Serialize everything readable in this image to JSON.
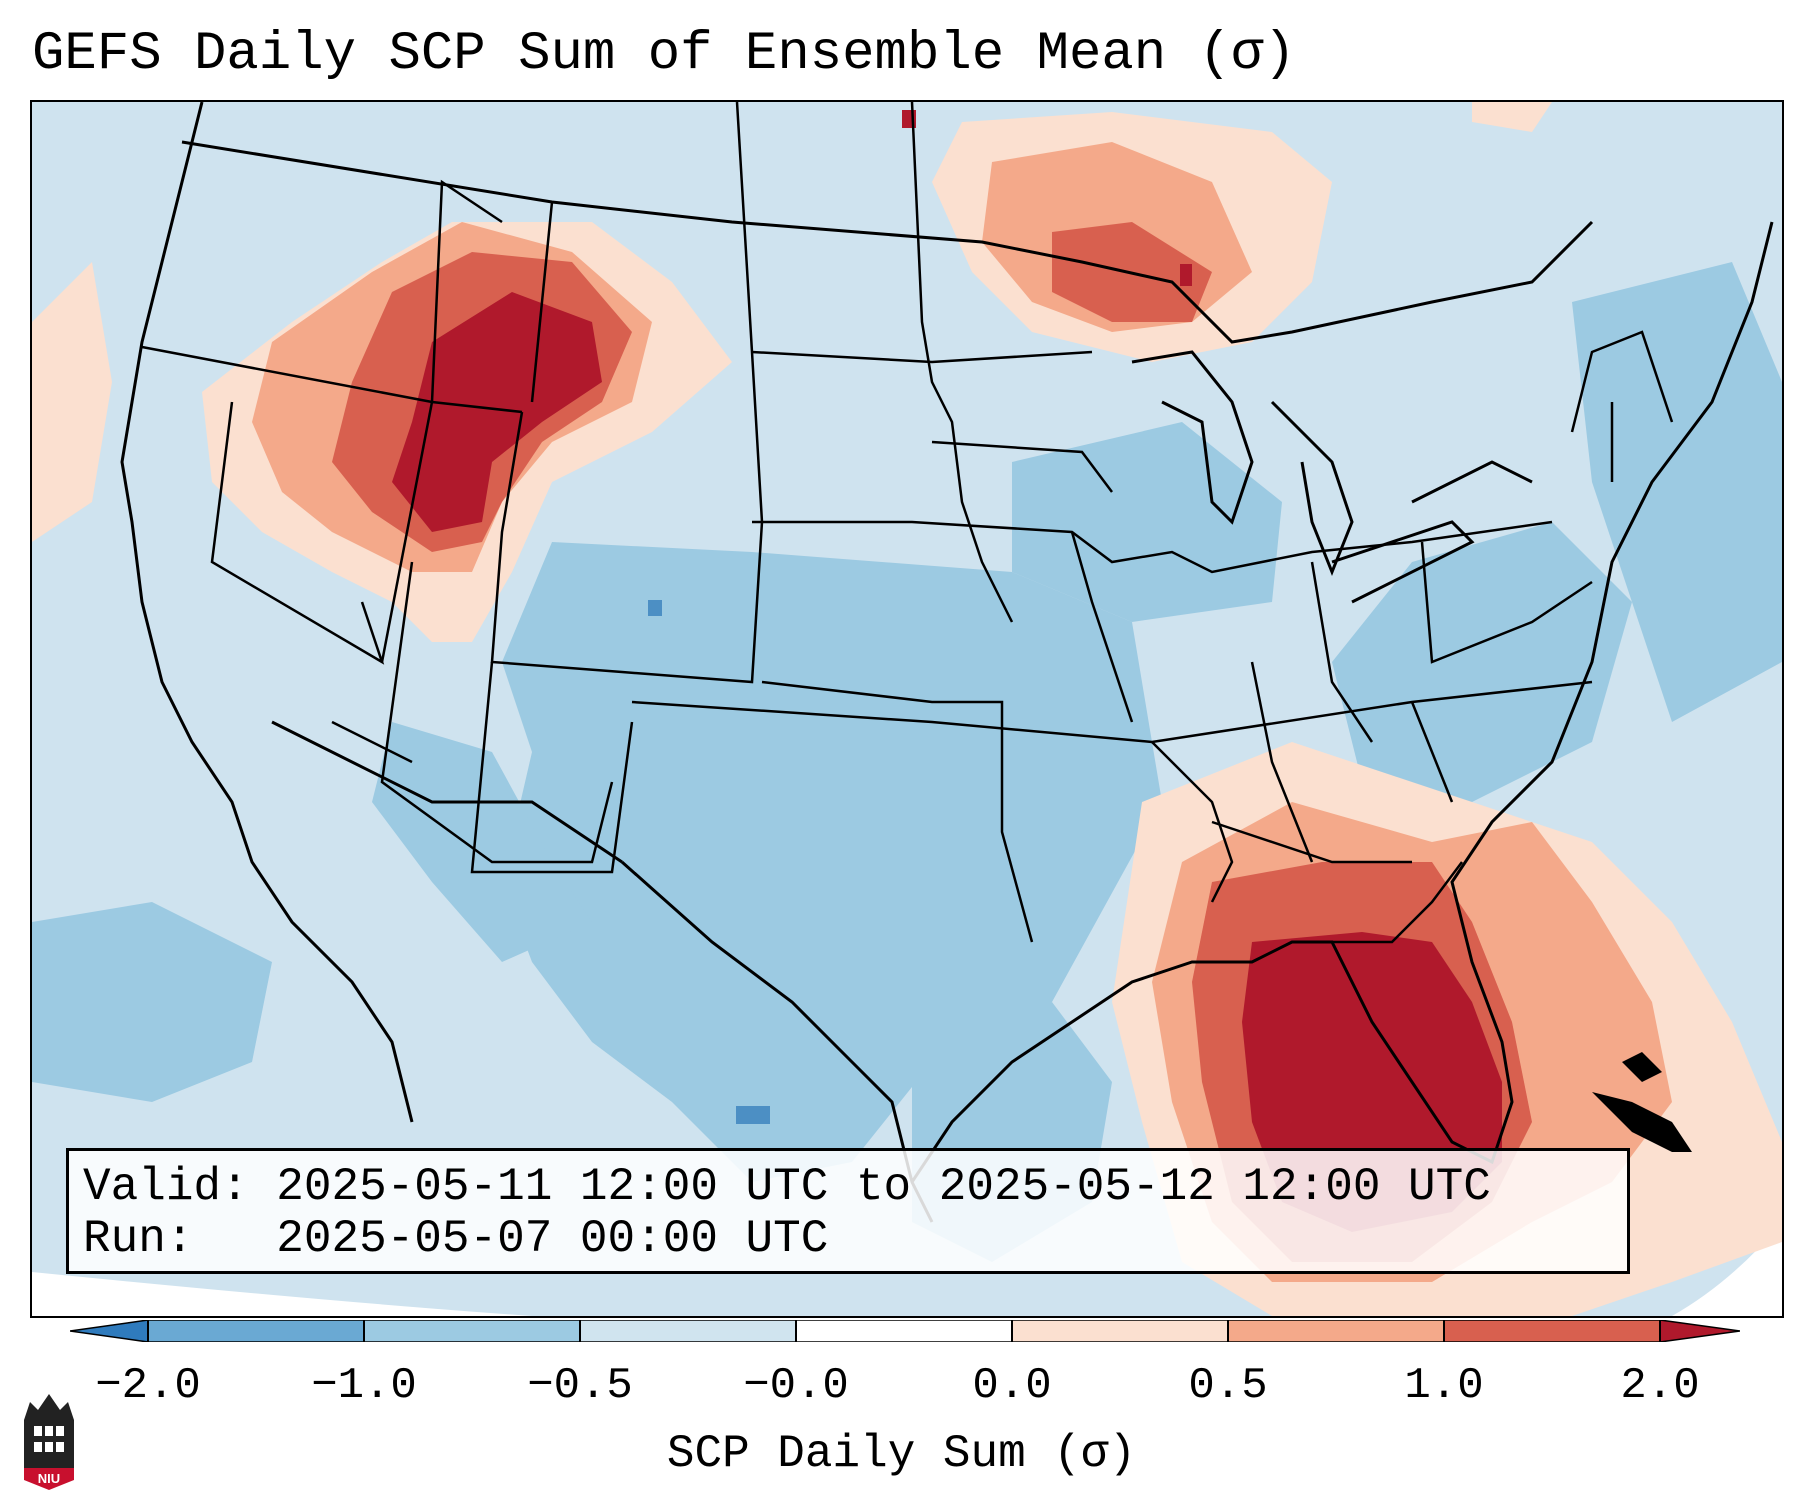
{
  "title": "GEFS Daily SCP Sum of Ensemble Mean (σ)",
  "info": {
    "valid_label": "Valid:",
    "valid_value": "2025-05-11 12:00 UTC to 2025-05-12 12:00 UTC",
    "run_label": "Run:",
    "run_value": "2025-05-07 00:00 UTC"
  },
  "colorbar": {
    "label": "SCP Daily Sum (σ)",
    "ticks": [
      "−2.0",
      "−1.0",
      "−0.5",
      "−0.0",
      "0.0",
      "0.5",
      "1.0",
      "2.0"
    ],
    "colors": [
      "#2f7bbd",
      "#6aa9d3",
      "#9ccae2",
      "#d0e4ef",
      "#fbe0d0",
      "#f4a98a",
      "#d8604f",
      "#b0192c"
    ],
    "extend": "both"
  },
  "map": {
    "region": "Contiguous United States",
    "features": [
      "state-borders",
      "coastlines",
      "great-lakes"
    ],
    "highlights": [
      {
        "area": "Idaho / Montana / Wyoming",
        "level": "positive 1.0 to 2.0"
      },
      {
        "area": "Florida / Southeast",
        "level": "positive 1.0 to 2.0"
      },
      {
        "area": "Lake Superior / Ontario",
        "level": "positive 0.5 to 1.0"
      },
      {
        "area": "Southern Plains / Texas",
        "level": "negative −1.0 to −0.5"
      }
    ]
  },
  "logo": {
    "text": "NIU",
    "color": "#c8102e"
  }
}
